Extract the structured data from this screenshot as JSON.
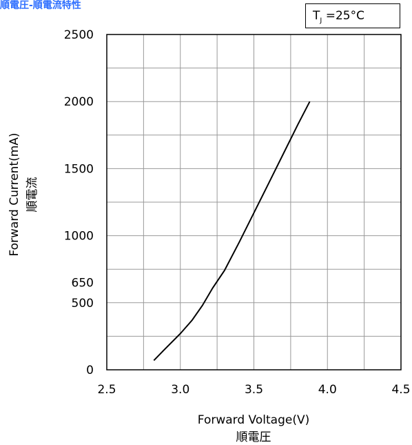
{
  "title": "順電圧-順電流特性",
  "condition": {
    "symbol": "T",
    "subscript": "J",
    "text": " =25°C"
  },
  "chart_data": {
    "type": "line",
    "xlabel": "Forward Voltage(V)",
    "xlabel_sub": "順電圧",
    "ylabel": "Forward Current(mA)",
    "ylabel_sub": "順電流",
    "xlim": [
      2.5,
      4.5
    ],
    "ylim": [
      0,
      2500
    ],
    "xticks": [
      2.5,
      3.0,
      3.5,
      4.0,
      4.5
    ],
    "xtick_labels": [
      "2.5",
      "3.0",
      "3.5",
      "4.0",
      "4.5"
    ],
    "yticks": [
      0,
      500,
      650,
      1000,
      1500,
      2000,
      2500
    ],
    "ytick_labels": [
      "0",
      "500",
      "650",
      "1000",
      "1500",
      "2000",
      "2500"
    ],
    "grid": true,
    "series": [
      {
        "x": [
          2.82,
          2.9,
          3.0,
          3.08,
          3.15,
          3.22,
          3.3,
          3.4,
          3.5,
          3.6,
          3.7,
          3.8,
          3.88
        ],
        "y": [
          70,
          160,
          270,
          370,
          480,
          610,
          740,
          950,
          1170,
          1390,
          1610,
          1830,
          2000
        ]
      }
    ]
  }
}
